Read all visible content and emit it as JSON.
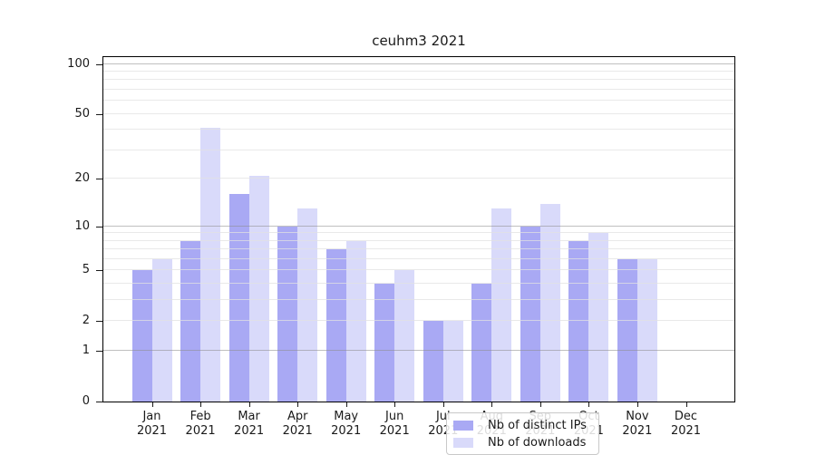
{
  "chart_data": {
    "type": "bar",
    "title": "ceuhm3 2021",
    "xlabel": "",
    "ylabel": "",
    "y_scale": "log10(value+1)",
    "ylim": [
      0,
      110
    ],
    "y_tick_values": [
      100,
      50,
      20,
      10,
      5,
      2,
      1,
      0
    ],
    "y_tick_labels": [
      "100",
      "50",
      "20",
      "10",
      "5",
      "2",
      "1",
      "0"
    ],
    "grid": {
      "major_lines": [
        1,
        10,
        100
      ],
      "minor_lines": [
        2,
        3,
        4,
        5,
        6,
        7,
        8,
        9,
        20,
        30,
        40,
        50,
        60,
        70,
        80,
        90
      ]
    },
    "categories": [
      "Jan 2021",
      "Feb 2021",
      "Mar 2021",
      "Apr 2021",
      "May 2021",
      "Jun 2021",
      "Jul 2021",
      "Aug 2021",
      "Sep 2021",
      "Oct 2021",
      "Nov 2021",
      "Dec 2021"
    ],
    "series": [
      {
        "name": "Nb of distinct IPs",
        "color": "#a9a9f4",
        "values": [
          5,
          8,
          16,
          10,
          7,
          4,
          2,
          4,
          10,
          8,
          6,
          0
        ]
      },
      {
        "name": "Nb of downloads",
        "color": "#d9dafa",
        "values": [
          6,
          41,
          21,
          13,
          8,
          5,
          2,
          13,
          14,
          9,
          6,
          0
        ]
      }
    ],
    "legend_position": "lower center"
  }
}
